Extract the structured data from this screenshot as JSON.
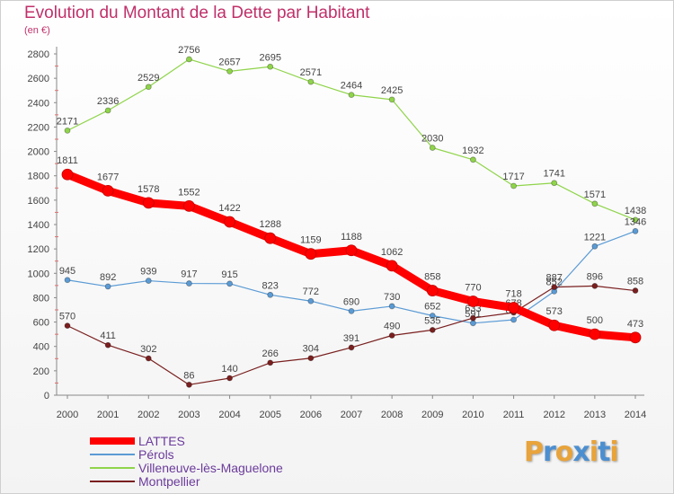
{
  "header": {
    "title": "Evolution du Montant de la Dette par Habitant",
    "subtitle": "(en €)"
  },
  "brand": {
    "text": "Proxiti",
    "letters": [
      {
        "ch": "P",
        "color": "#e8a33a"
      },
      {
        "ch": "r",
        "color": "#4c8fd0"
      },
      {
        "ch": "o",
        "color": "#e8a33a"
      },
      {
        "ch": "x",
        "color": "#4c8fd0"
      },
      {
        "ch": "i",
        "color": "#e8a33a"
      },
      {
        "ch": "t",
        "color": "#4c8fd0"
      },
      {
        "ch": "i",
        "color": "#e8a33a"
      }
    ]
  },
  "chart_data": {
    "type": "line",
    "title": "Evolution du Montant de la Dette par Habitant",
    "subtitle": "(en €)",
    "xlabel": "",
    "ylabel": "",
    "x": [
      "2000",
      "2001",
      "2002",
      "2003",
      "2004",
      "2005",
      "2006",
      "2007",
      "2008",
      "2009",
      "2010",
      "2011",
      "2012",
      "2013",
      "2014"
    ],
    "ylim": [
      0,
      2800
    ],
    "yticks": [
      0,
      200,
      400,
      600,
      800,
      1000,
      1200,
      1400,
      1600,
      1800,
      2000,
      2200,
      2400,
      2600,
      2800
    ],
    "grid": false,
    "legend_position": "bottom-left",
    "series": [
      {
        "name": "LATTES",
        "color": "#ff0000",
        "values": [
          1811,
          1677,
          1578,
          1552,
          1422,
          1288,
          1159,
          1188,
          1062,
          858,
          770,
          718,
          573,
          500,
          473
        ]
      },
      {
        "name": "Pérols",
        "color": "#5b9bd5",
        "values": [
          945,
          892,
          939,
          917,
          915,
          823,
          772,
          690,
          730,
          652,
          591,
          619,
          852,
          1221,
          1346
        ]
      },
      {
        "name": "Villeneuve-lès-Maguelone",
        "color": "#8fd44a",
        "values": [
          2171,
          2336,
          2529,
          2756,
          2657,
          2695,
          2571,
          2464,
          2425,
          2030,
          1932,
          1717,
          1741,
          1571,
          1438
        ]
      },
      {
        "name": "Montpellier",
        "color": "#7a1f1f",
        "values": [
          570,
          411,
          302,
          86,
          140,
          266,
          304,
          391,
          490,
          535,
          633,
          678,
          887,
          896,
          858
        ]
      }
    ]
  }
}
